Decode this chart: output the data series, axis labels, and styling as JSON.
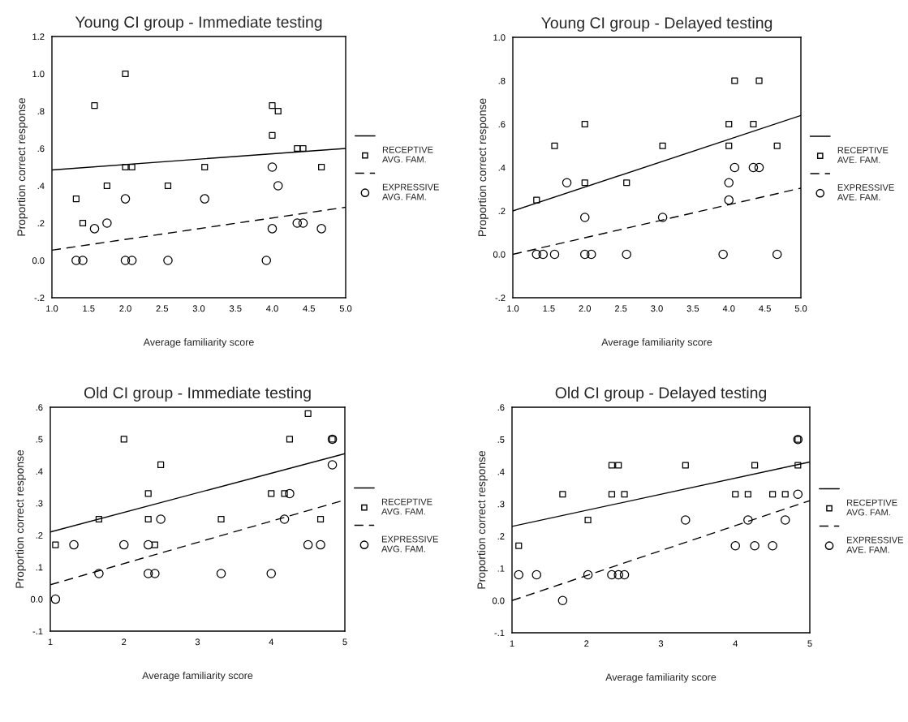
{
  "chart_data": [
    {
      "type": "scatter",
      "title": "Young CI group - Immediate testing",
      "xlabel": "Average familiarity score",
      "ylabel": "Proportion correct response",
      "xlim": [
        1,
        5
      ],
      "ylim": [
        -0.2,
        1.2
      ],
      "xticks": [
        {
          "value": 1,
          "label": "1.0"
        },
        1.5,
        {
          "value": 2,
          "label": "2.0"
        },
        2.5,
        {
          "value": 3,
          "label": "3.0"
        },
        3.5,
        {
          "value": 4,
          "label": "4.0"
        },
        4.5,
        {
          "value": 5,
          "label": "5.0"
        }
      ],
      "yticks": [
        {
          "value": -0.2,
          "label": "-.2"
        },
        {
          "value": 0,
          "label": "0.0"
        },
        {
          "value": 0.2,
          "label": ".2"
        },
        {
          "value": 0.4,
          "label": ".4"
        },
        {
          "value": 0.6,
          "label": ".6"
        },
        {
          "value": 0.8,
          "label": ".8"
        },
        {
          "value": 1,
          "label": "1.0"
        },
        {
          "value": 1.2,
          "label": "1.2"
        }
      ],
      "grid": false,
      "legend": "right",
      "series": [
        {
          "type": "line",
          "color": "#000000",
          "line_style": "solid",
          "marker": "none",
          "x": [
            1,
            5
          ],
          "values": [
            0.485,
            0.6
          ]
        },
        {
          "name": "RECEPTIVE\nAVG. FAM.",
          "color": "#000000",
          "marker": "square",
          "x": [
            1.33,
            1.42,
            1.58,
            1.75,
            2.0,
            2.0,
            2.09,
            2.58,
            3.08,
            4.0,
            4.0,
            4.08,
            4.34,
            4.42,
            4.67
          ],
          "values": [
            0.33,
            0.2,
            0.83,
            0.4,
            1.0,
            0.5,
            0.5,
            0.4,
            0.5,
            0.83,
            0.67,
            0.8,
            0.6,
            0.6,
            0.5
          ]
        },
        {
          "type": "line",
          "color": "#000000",
          "line_style": "dashed",
          "marker": "none",
          "x": [
            1,
            5
          ],
          "values": [
            0.055,
            0.285
          ]
        },
        {
          "name": "EXPRESSIVE\nAVG. FAM.",
          "color": "#000000",
          "marker": "circle",
          "x": [
            1.33,
            1.42,
            1.58,
            1.75,
            2.0,
            2.0,
            2.09,
            2.58,
            3.08,
            3.92,
            4.0,
            4.0,
            4.08,
            4.34,
            4.42,
            4.67
          ],
          "values": [
            0,
            0,
            0.17,
            0.2,
            0.33,
            0,
            0,
            0,
            0.33,
            0,
            0.5,
            0.17,
            0.4,
            0.2,
            0.2,
            0.17
          ]
        }
      ]
    },
    {
      "type": "scatter",
      "title": "Young CI group - Delayed testing",
      "xlabel": "Average familiarity score",
      "ylabel": "Proportion correct response",
      "xlim": [
        1,
        5
      ],
      "ylim": [
        -0.2,
        1.0
      ],
      "xticks": [
        {
          "value": 1,
          "label": "1.0"
        },
        1.5,
        {
          "value": 2,
          "label": "2.0"
        },
        2.5,
        {
          "value": 3,
          "label": "3.0"
        },
        3.5,
        {
          "value": 4,
          "label": "4.0"
        },
        4.5,
        {
          "value": 5,
          "label": "5.0"
        }
      ],
      "yticks": [
        {
          "value": -0.2,
          "label": "-.2"
        },
        {
          "value": 0,
          "label": "0.0"
        },
        {
          "value": 0.2,
          "label": ".2"
        },
        {
          "value": 0.4,
          "label": ".4"
        },
        {
          "value": 0.6,
          "label": ".6"
        },
        {
          "value": 0.8,
          "label": ".8"
        },
        {
          "value": 1,
          "label": "1.0"
        }
      ],
      "grid": false,
      "legend": "right",
      "series": [
        {
          "type": "line",
          "color": "#000000",
          "line_style": "solid",
          "marker": "none",
          "x": [
            1,
            5
          ],
          "values": [
            0.2,
            0.64
          ]
        },
        {
          "name": "RECEPTIVE\nAVE. FAM.",
          "color": "#000000",
          "marker": "square",
          "x": [
            1.33,
            1.58,
            2.0,
            2.0,
            2.58,
            3.08,
            4.0,
            4.0,
            4.08,
            4.34,
            4.42,
            4.67
          ],
          "values": [
            0.25,
            0.5,
            0.6,
            0.33,
            0.33,
            0.5,
            0.6,
            0.5,
            0.8,
            0.6,
            0.8,
            0.5
          ]
        },
        {
          "type": "line",
          "color": "#000000",
          "line_style": "dashed",
          "marker": "none",
          "x": [
            1,
            5
          ],
          "values": [
            0.0,
            0.305
          ]
        },
        {
          "name": "EXPRESSIVE\nAVE. FAM.",
          "color": "#000000",
          "marker": "circle",
          "x": [
            1.33,
            1.42,
            1.58,
            1.75,
            2.0,
            2.0,
            2.09,
            2.58,
            3.08,
            3.92,
            4.0,
            4.0,
            4.08,
            4.34,
            4.42,
            4.67
          ],
          "values": [
            0,
            0,
            0,
            0.33,
            0.17,
            0,
            0,
            0,
            0.17,
            0,
            0.33,
            0.25,
            0.4,
            0.4,
            0.4,
            0
          ]
        }
      ]
    },
    {
      "type": "scatter",
      "title": "Old CI group - Immediate testing",
      "xlabel": "Average familiarity score",
      "ylabel": "Proportion correct response",
      "xlim": [
        1,
        5
      ],
      "ylim": [
        -0.1,
        0.6
      ],
      "xticks": [
        1,
        2,
        3,
        4,
        5
      ],
      "yticks": [
        {
          "value": -0.1,
          "label": "-.1"
        },
        {
          "value": 0,
          "label": "0.0"
        },
        {
          "value": 0.1,
          "label": ".1"
        },
        {
          "value": 0.2,
          "label": ".2"
        },
        {
          "value": 0.3,
          "label": ".3"
        },
        {
          "value": 0.4,
          "label": ".4"
        },
        {
          "value": 0.5,
          "label": ".5"
        },
        {
          "value": 0.6,
          "label": ".6"
        }
      ],
      "grid": false,
      "legend": "right",
      "series": [
        {
          "type": "line",
          "color": "#000000",
          "line_style": "solid",
          "marker": "none",
          "x": [
            1,
            5
          ],
          "values": [
            0.21,
            0.455
          ]
        },
        {
          "name": "RECEPTIVE\nAVG. FAM.",
          "color": "#000000",
          "marker": "square",
          "x": [
            1.07,
            1.66,
            2.0,
            2.33,
            2.33,
            2.42,
            2.5,
            3.32,
            4.0,
            4.18,
            4.25,
            4.5,
            4.67,
            4.83
          ],
          "values": [
            0.17,
            0.25,
            0.5,
            0.33,
            0.25,
            0.17,
            0.42,
            0.25,
            0.33,
            0.33,
            0.5,
            0.58,
            0.25,
            0.5
          ]
        },
        {
          "type": "line",
          "color": "#000000",
          "line_style": "dashed",
          "marker": "none",
          "x": [
            1,
            5
          ],
          "values": [
            0.045,
            0.31
          ]
        },
        {
          "name": "EXPRESSIVE\nAVG. FAM.",
          "color": "#000000",
          "marker": "circle",
          "x": [
            1.07,
            1.32,
            1.66,
            2.0,
            2.33,
            2.33,
            2.42,
            2.5,
            3.32,
            4.0,
            4.18,
            4.25,
            4.5,
            4.67,
            4.83,
            4.83
          ],
          "values": [
            0,
            0.17,
            0.08,
            0.17,
            0.17,
            0.08,
            0.08,
            0.25,
            0.08,
            0.08,
            0.25,
            0.33,
            0.17,
            0.17,
            0.5,
            0.42
          ]
        }
      ]
    },
    {
      "type": "scatter",
      "title": "Old CI group - Delayed testing",
      "xlabel": "Average familiarity score",
      "ylabel": "Proportion correct response",
      "xlim": [
        1,
        5
      ],
      "ylim": [
        -0.1,
        0.6
      ],
      "xticks": [
        1,
        2,
        3,
        4,
        5
      ],
      "yticks": [
        {
          "value": -0.1,
          "label": "-.1"
        },
        {
          "value": 0,
          "label": "0.0"
        },
        {
          "value": 0.1,
          "label": ".1"
        },
        {
          "value": 0.2,
          "label": ".2"
        },
        {
          "value": 0.3,
          "label": ".3"
        },
        {
          "value": 0.4,
          "label": ".4"
        },
        {
          "value": 0.5,
          "label": ".5"
        },
        {
          "value": 0.6,
          "label": ".6"
        }
      ],
      "grid": false,
      "legend": "right",
      "series": [
        {
          "type": "line",
          "color": "#000000",
          "line_style": "solid",
          "marker": "none",
          "x": [
            1,
            5
          ],
          "values": [
            0.23,
            0.43
          ]
        },
        {
          "name": "RECEPTIVE\nAVG. FAM.",
          "color": "#000000",
          "marker": "square",
          "x": [
            1.09,
            1.68,
            2.02,
            2.34,
            2.34,
            2.43,
            2.51,
            3.33,
            4.0,
            4.17,
            4.26,
            4.5,
            4.67,
            4.84,
            4.84
          ],
          "values": [
            0.17,
            0.33,
            0.25,
            0.42,
            0.33,
            0.42,
            0.33,
            0.42,
            0.33,
            0.33,
            0.42,
            0.33,
            0.33,
            0.42,
            0.5
          ]
        },
        {
          "type": "line",
          "color": "#000000",
          "line_style": "dashed",
          "marker": "none",
          "x": [
            1,
            5
          ],
          "values": [
            0.0,
            0.31
          ]
        },
        {
          "name": "EXPRESSIVE\nAVE. FAM.",
          "color": "#000000",
          "marker": "circle",
          "x": [
            1.09,
            1.33,
            1.68,
            2.02,
            2.34,
            2.43,
            2.51,
            3.33,
            4.0,
            4.17,
            4.26,
            4.5,
            4.67,
            4.84,
            4.84
          ],
          "values": [
            0.08,
            0.08,
            0,
            0.08,
            0.08,
            0.08,
            0.08,
            0.25,
            0.17,
            0.25,
            0.17,
            0.17,
            0.25,
            0.5,
            0.33
          ]
        }
      ]
    }
  ]
}
